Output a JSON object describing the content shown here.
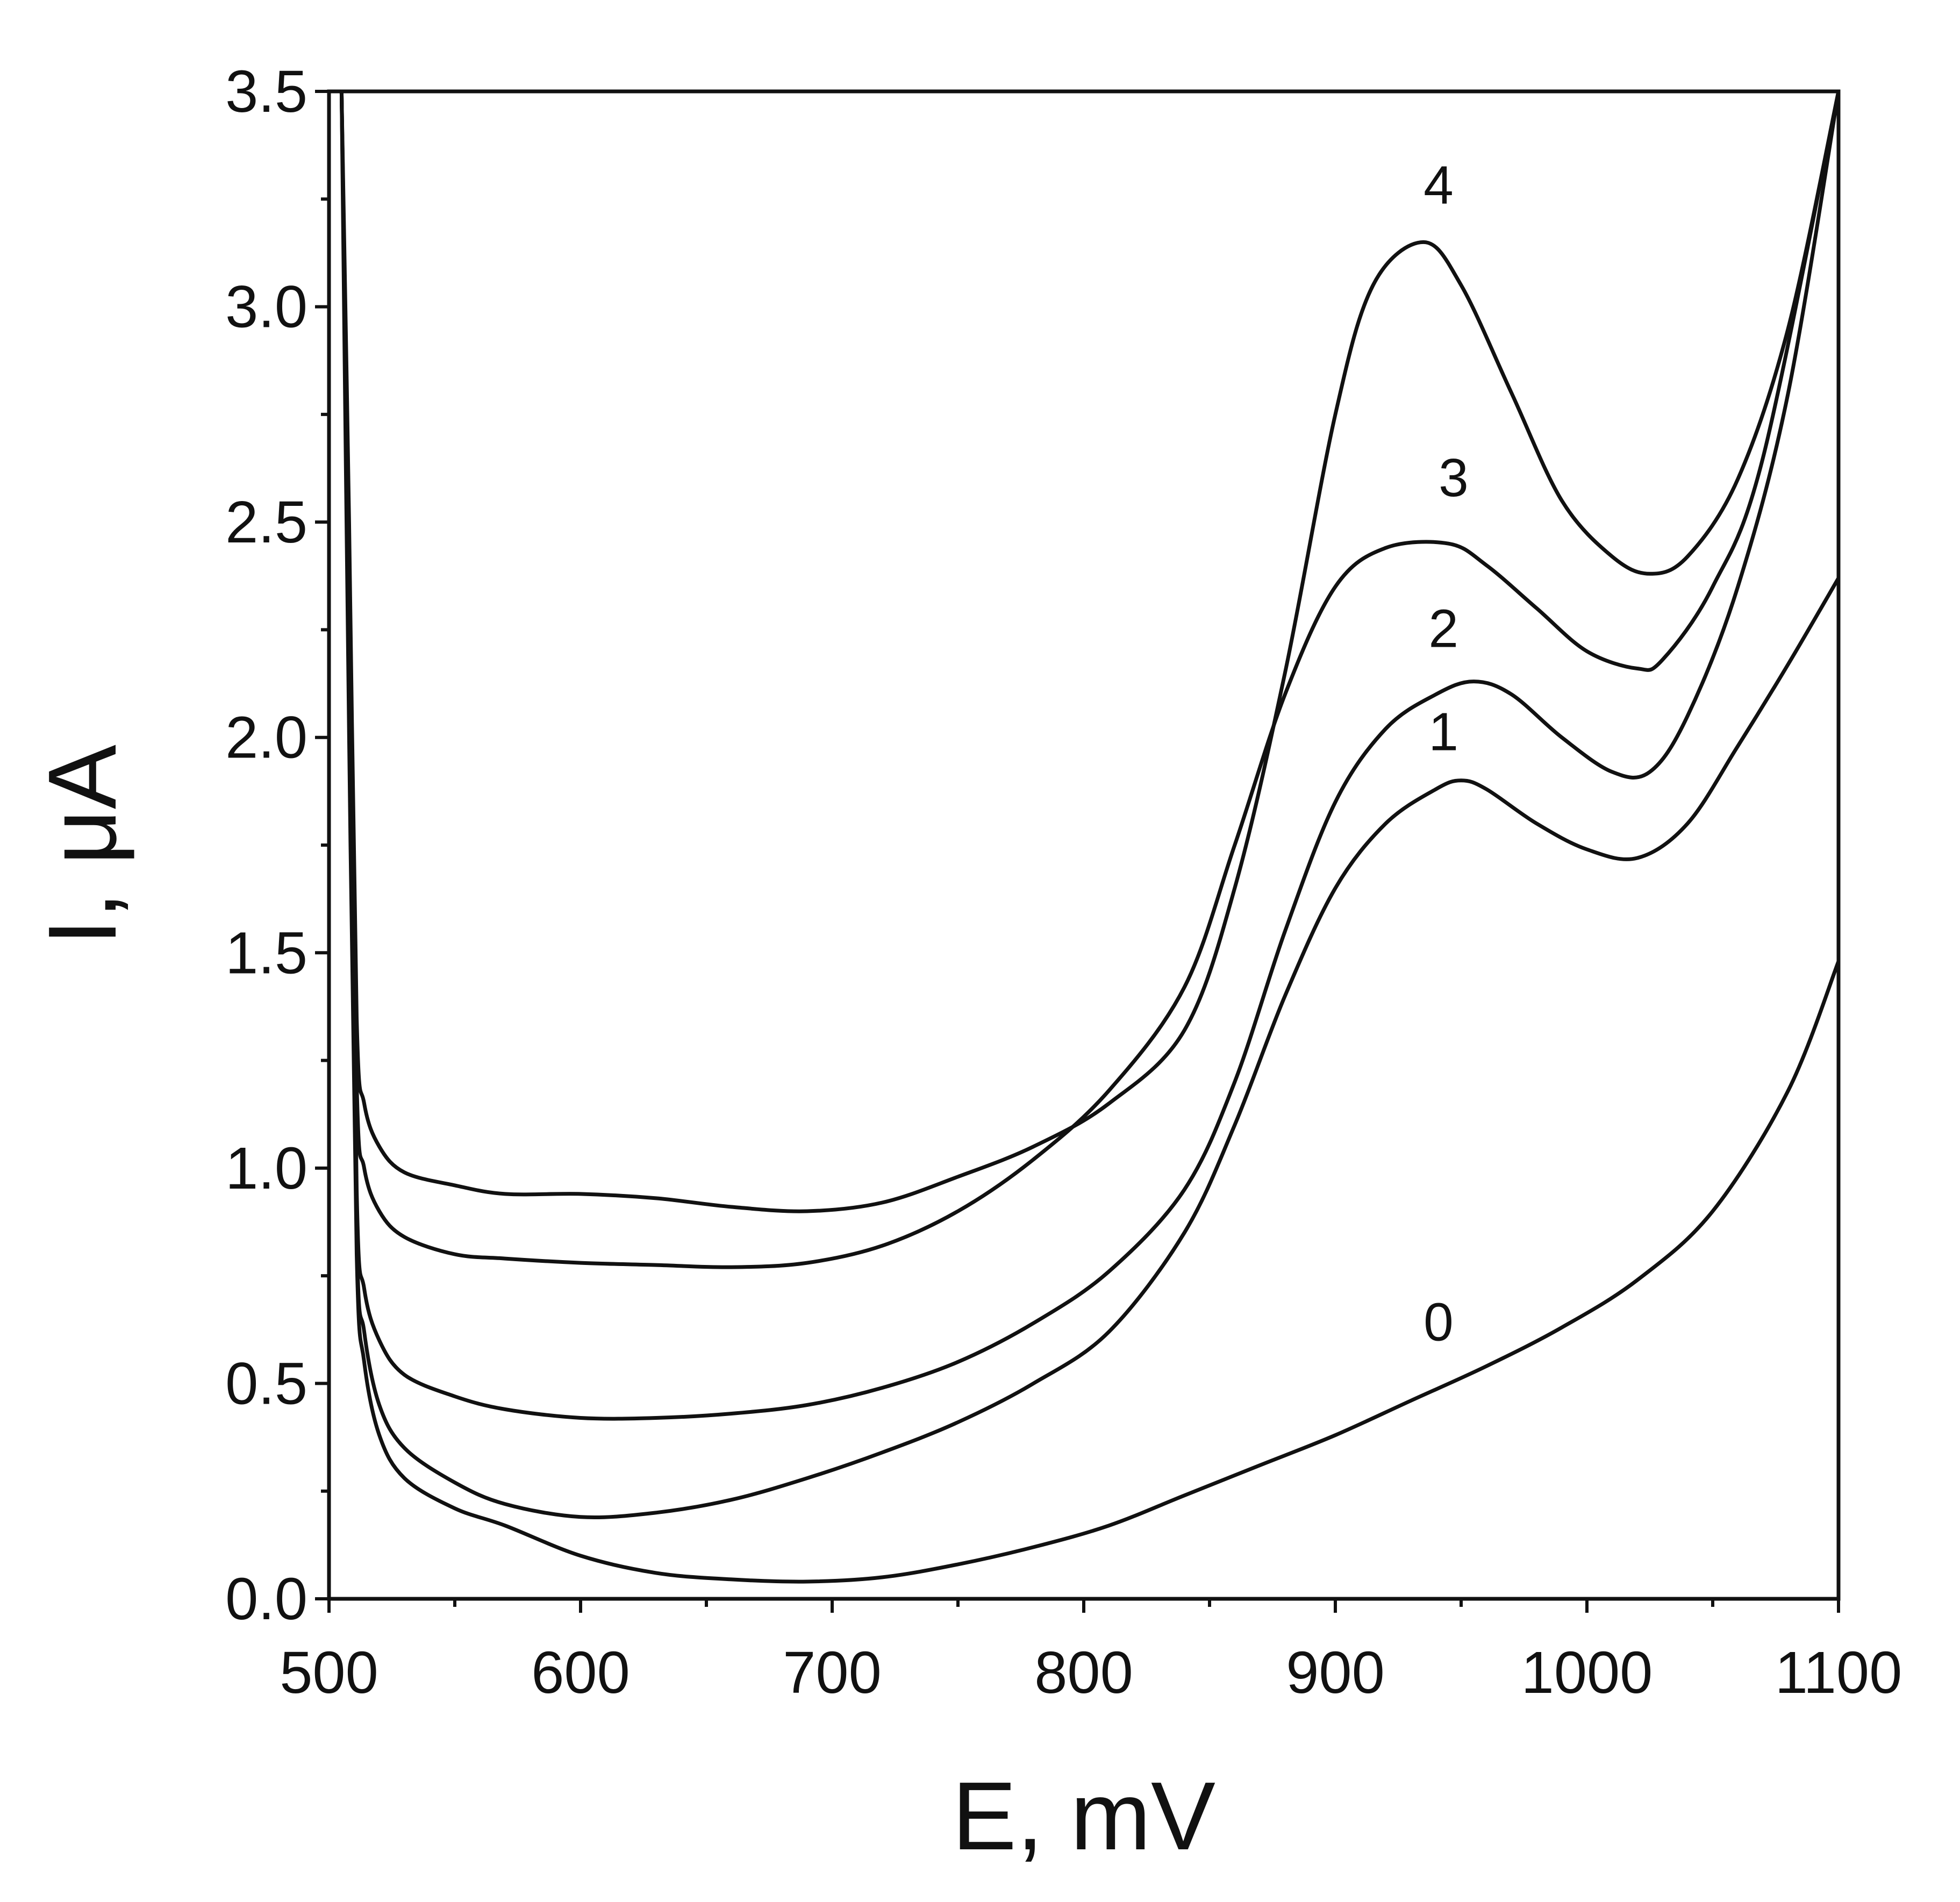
{
  "chart_data": {
    "type": "line",
    "title": "",
    "xlabel": "E, mV",
    "ylabel": "I, μA",
    "xlim": [
      500,
      1100
    ],
    "ylim": [
      0.0,
      3.5
    ],
    "grid": false,
    "legend": "none",
    "x_ticks": [
      500,
      600,
      700,
      800,
      900,
      1000,
      1100
    ],
    "x_tick_labels": [
      "500",
      "600",
      "700",
      "800",
      "900",
      "1000",
      "1100"
    ],
    "x_minor_step": 50,
    "y_ticks": [
      0.0,
      0.5,
      1.0,
      1.5,
      2.0,
      2.5,
      3.0,
      3.5
    ],
    "y_tick_labels": [
      "0.0",
      "0.5",
      "1.0",
      "1.5",
      "2.0",
      "2.5",
      "3.0",
      "3.5"
    ],
    "y_minor_step": 0.25,
    "series": [
      {
        "name": "0",
        "label": "0",
        "label_at": [
          941,
          0.6
        ],
        "x": [
          505,
          508,
          511,
          514,
          520,
          530,
          550,
          570,
          600,
          630,
          660,
          690,
          720,
          750,
          780,
          810,
          840,
          870,
          900,
          930,
          960,
          990,
          1020,
          1050,
          1080,
          1100
        ],
        "y": [
          3.5,
          2.0,
          0.8,
          0.55,
          0.38,
          0.28,
          0.21,
          0.17,
          0.1,
          0.06,
          0.045,
          0.04,
          0.05,
          0.08,
          0.12,
          0.17,
          0.24,
          0.31,
          0.38,
          0.46,
          0.54,
          0.63,
          0.74,
          0.9,
          1.18,
          1.48
        ]
      },
      {
        "name": "1",
        "label": "1",
        "label_at": [
          943,
          1.97
        ],
        "x": [
          505,
          508,
          511,
          514,
          520,
          530,
          550,
          570,
          600,
          630,
          660,
          690,
          720,
          750,
          780,
          810,
          840,
          860,
          880,
          900,
          920,
          940,
          950,
          960,
          980,
          1000,
          1020,
          1040,
          1060,
          1080,
          1100
        ],
        "y": [
          3.5,
          2.2,
          0.85,
          0.62,
          0.45,
          0.35,
          0.27,
          0.22,
          0.19,
          0.2,
          0.23,
          0.28,
          0.34,
          0.41,
          0.5,
          0.62,
          0.85,
          1.1,
          1.4,
          1.65,
          1.8,
          1.88,
          1.9,
          1.88,
          1.8,
          1.74,
          1.72,
          1.8,
          1.98,
          2.17,
          2.37
        ]
      },
      {
        "name": "2",
        "label": "2",
        "label_at": [
          943,
          2.21
        ],
        "x": [
          505,
          508,
          511,
          514,
          520,
          530,
          550,
          570,
          600,
          630,
          660,
          690,
          720,
          750,
          780,
          810,
          840,
          860,
          880,
          900,
          920,
          940,
          955,
          970,
          990,
          1010,
          1025,
          1040,
          1060,
          1080,
          1100
        ],
        "y": [
          3.5,
          2.3,
          0.95,
          0.72,
          0.6,
          0.52,
          0.47,
          0.44,
          0.42,
          0.42,
          0.43,
          0.45,
          0.49,
          0.55,
          0.64,
          0.76,
          0.95,
          1.2,
          1.55,
          1.85,
          2.02,
          2.1,
          2.13,
          2.1,
          2.0,
          1.92,
          1.92,
          2.05,
          2.35,
          2.8,
          3.5
        ]
      },
      {
        "name": "3",
        "label": "3",
        "label_at": [
          947,
          2.56
        ],
        "x": [
          505,
          508,
          511,
          514,
          520,
          530,
          550,
          570,
          600,
          630,
          660,
          690,
          720,
          750,
          780,
          810,
          840,
          860,
          880,
          900,
          920,
          945,
          960,
          980,
          1000,
          1020,
          1030,
          1050,
          1070,
          1100
        ],
        "y": [
          3.5,
          2.4,
          1.2,
          1.0,
          0.9,
          0.84,
          0.8,
          0.79,
          0.78,
          0.775,
          0.77,
          0.78,
          0.82,
          0.9,
          1.02,
          1.18,
          1.42,
          1.75,
          2.1,
          2.35,
          2.44,
          2.45,
          2.4,
          2.3,
          2.2,
          2.16,
          2.18,
          2.35,
          2.65,
          3.5
        ]
      },
      {
        "name": "4",
        "label": "4",
        "label_at": [
          941,
          3.24
        ],
        "x": [
          505,
          508,
          511,
          514,
          520,
          530,
          550,
          570,
          600,
          630,
          660,
          690,
          720,
          750,
          780,
          810,
          840,
          860,
          880,
          900,
          915,
          935,
          950,
          970,
          990,
          1010,
          1025,
          1040,
          1060,
          1080,
          1100
        ],
        "y": [
          3.5,
          2.5,
          1.35,
          1.15,
          1.05,
          0.99,
          0.96,
          0.94,
          0.94,
          0.93,
          0.91,
          0.9,
          0.92,
          0.98,
          1.05,
          1.15,
          1.32,
          1.65,
          2.15,
          2.75,
          3.05,
          3.15,
          3.05,
          2.8,
          2.55,
          2.42,
          2.38,
          2.42,
          2.6,
          2.95,
          3.5
        ]
      }
    ]
  }
}
